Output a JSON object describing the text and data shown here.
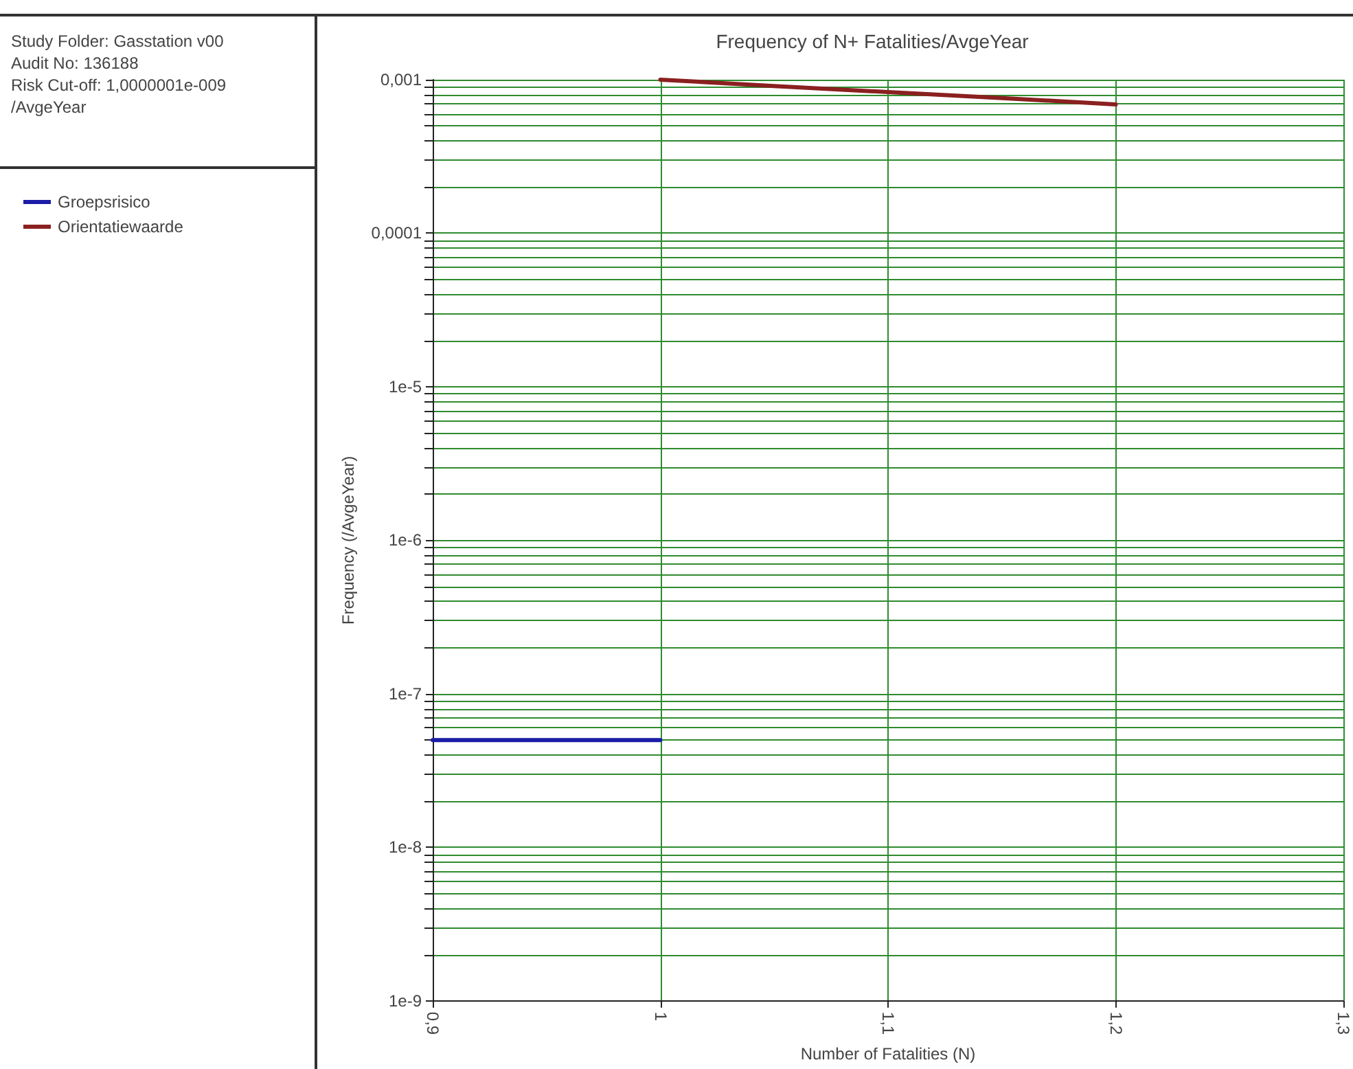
{
  "chart_data": {
    "type": "line",
    "title": "Frequency of N+ Fatalities/AvgeYear",
    "xlabel": "Number of Fatalities (N)",
    "ylabel": "Frequency (/AvgeYear)",
    "annotations": [
      "Study Folder: Gasstation v00",
      "Audit No: 136188",
      "Risk Cut-off: 1,0000001e-009",
      "/AvgeYear"
    ],
    "series": [
      {
        "name": "Groepsrisico",
        "color": "#1c1ca8",
        "x": [
          0.9,
          1.0
        ],
        "values": [
          5e-08,
          5e-08
        ]
      },
      {
        "name": "Orientatiewaarde",
        "color": "#8b2020",
        "x": [
          1.0,
          1.05,
          1.1,
          1.15,
          1.2
        ],
        "values": [
          0.001,
          0.00091,
          0.00083,
          0.00076,
          0.00069
        ]
      }
    ],
    "xlim": [
      0.9,
      1.3
    ],
    "xticks": [
      {
        "value": 0.9,
        "label": "0,9"
      },
      1,
      {
        "value": 1.1,
        "label": "1,1"
      },
      {
        "value": 1.2,
        "label": "1,2"
      },
      {
        "value": 1.3,
        "label": "1,3"
      }
    ],
    "ylim": [
      1e-09,
      0.001
    ],
    "yticks": [
      {
        "value": 1e-09,
        "label": "1e-9"
      },
      {
        "value": 1e-08,
        "label": "1e-8"
      },
      {
        "value": 1e-07,
        "label": "1e-7"
      },
      {
        "value": 1e-06,
        "label": "1e-6"
      },
      {
        "value": 1e-05,
        "label": "1e-5"
      },
      {
        "value": 0.0001,
        "label": "0,0001"
      },
      {
        "value": 0.001,
        "label": "0,001"
      }
    ],
    "log": "y",
    "grid": true,
    "legend": "left",
    "marker": "none",
    "line_style": "solid"
  }
}
